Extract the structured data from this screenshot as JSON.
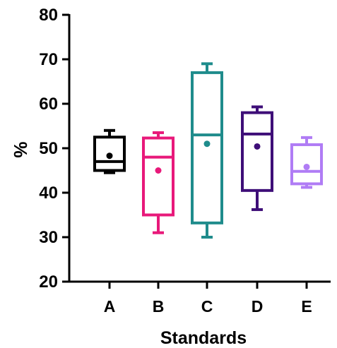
{
  "chart_data": {
    "type": "box",
    "xlabel": "Standards",
    "ylabel": "%",
    "ylim": [
      20,
      80
    ],
    "yticks": [
      "20",
      "30",
      "40",
      "50",
      "60",
      "70",
      "80"
    ],
    "grid": false,
    "categories": [
      "A",
      "B",
      "C",
      "D",
      "E"
    ],
    "colors": [
      "#000000",
      "#E8197A",
      "#1F8C8C",
      "#3E0E78",
      "#B07CF5"
    ],
    "boxes": [
      {
        "name": "A",
        "min": 44.5,
        "q1": 45.0,
        "median": 47.0,
        "q3": 52.5,
        "max": 54.0,
        "mean": 48.3
      },
      {
        "name": "B",
        "min": 31.0,
        "q1": 35.0,
        "median": 48.0,
        "q3": 52.3,
        "max": 53.5,
        "mean": 45.0
      },
      {
        "name": "C",
        "min": 30.0,
        "q1": 33.2,
        "median": 53.0,
        "q3": 67.0,
        "max": 69.0,
        "mean": 51.0
      },
      {
        "name": "D",
        "min": 36.2,
        "q1": 40.5,
        "median": 53.2,
        "q3": 58.0,
        "max": 59.3,
        "mean": 50.4
      },
      {
        "name": "E",
        "min": 41.2,
        "q1": 42.0,
        "median": 44.8,
        "q3": 50.8,
        "max": 52.4,
        "mean": 45.8
      }
    ]
  }
}
